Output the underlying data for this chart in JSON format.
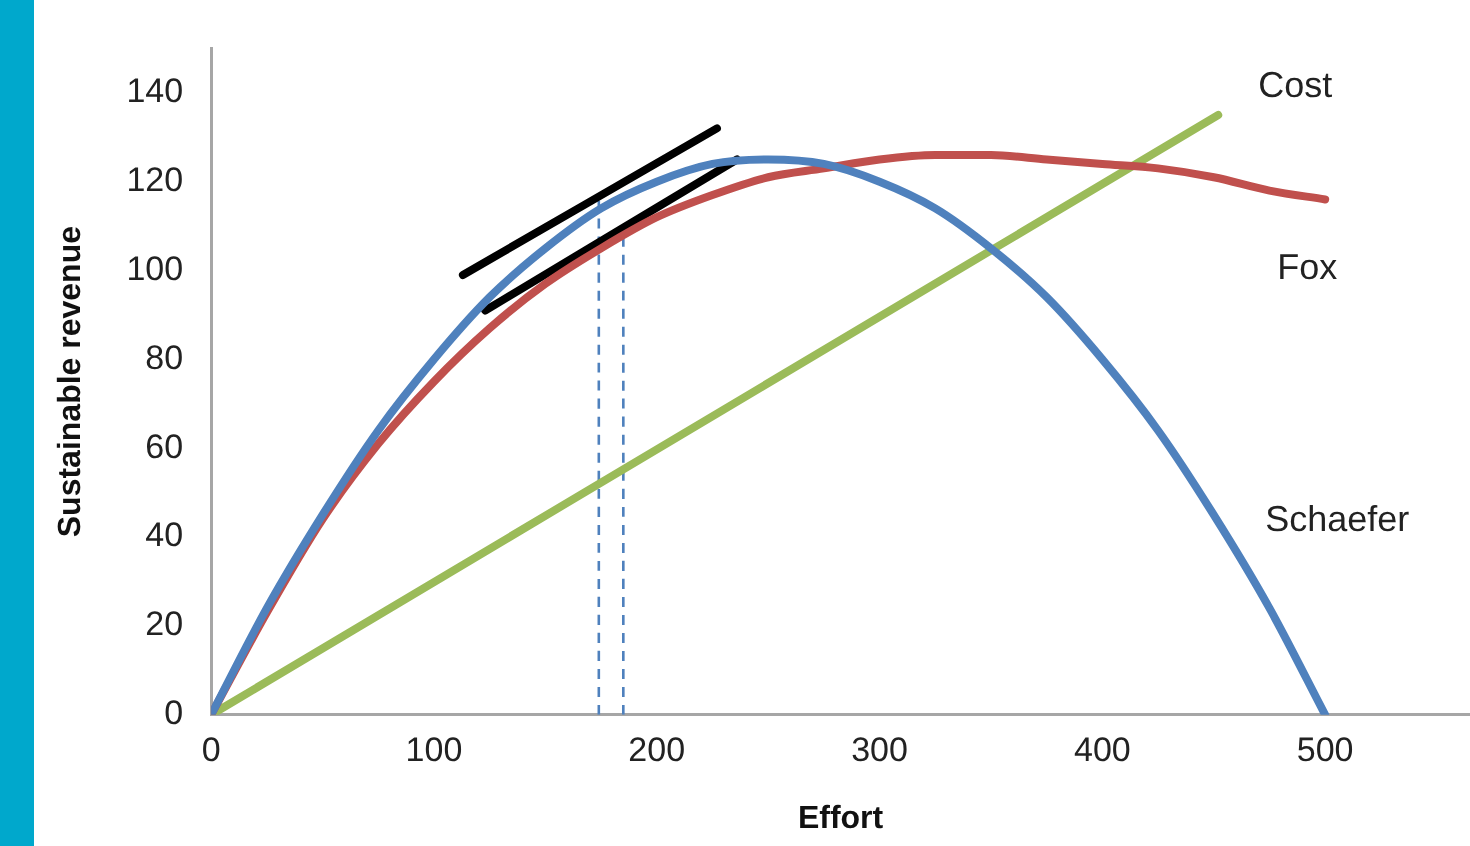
{
  "chart_data": {
    "type": "line",
    "xlabel": "Effort",
    "ylabel": "Sustainable revenue",
    "xlim": [
      0,
      565
    ],
    "ylim": [
      0,
      150
    ],
    "xticks": [
      0,
      100,
      200,
      300,
      400,
      500
    ],
    "yticks": [
      0,
      20,
      40,
      60,
      80,
      100,
      120,
      140
    ],
    "grid": false,
    "legend": false,
    "marker": "none",
    "line_style": "solid",
    "x": [
      0,
      25,
      50,
      75,
      100,
      125,
      150,
      175,
      200,
      225,
      250,
      275,
      300,
      325,
      350,
      375,
      400,
      425,
      450,
      475,
      500
    ],
    "series": [
      {
        "name": "Schaefer",
        "color": "#4f81bd",
        "values": [
          0,
          24,
          45,
          64,
          80,
          94,
          105,
          114,
          120,
          124,
          125,
          124,
          120,
          114,
          105,
          94,
          80,
          64,
          45,
          24,
          0
        ]
      },
      {
        "name": "Fox",
        "color": "#c0504d",
        "values": [
          0,
          23,
          44,
          61,
          75,
          87,
          97,
          105,
          112,
          117,
          121,
          123,
          125,
          126,
          126,
          125,
          124,
          123,
          121,
          118,
          116
        ]
      },
      {
        "name": "Cost",
        "color": "#9bbb59",
        "x": [
          0,
          452
        ],
        "values": [
          0,
          135
        ]
      },
      {
        "color": "#000000",
        "x": [
          113,
          227
        ],
        "values": [
          99,
          132
        ]
      },
      {
        "color": "#000000",
        "x": [
          123,
          236
        ],
        "values": [
          91,
          125
        ]
      },
      {
        "color": "#4f81bd",
        "line_style": "dashed",
        "x": [
          174,
          174
        ],
        "values": [
          0,
          116
        ]
      },
      {
        "color": "#4f81bd",
        "line_style": "dashed",
        "x": [
          185,
          185
        ],
        "values": [
          0,
          108
        ]
      }
    ]
  }
}
